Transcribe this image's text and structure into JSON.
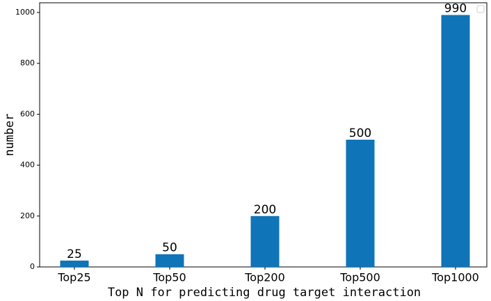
{
  "chart_data": {
    "type": "bar",
    "categories": [
      "Top25",
      "Top50",
      "Top200",
      "Top500",
      "Top1000"
    ],
    "values": [
      25,
      50,
      200,
      500,
      990
    ],
    "color": "#0f74b8",
    "xlabel": "Top N for predicting drug target interaction",
    "ylabel": "number",
    "ylim": [
      0,
      1038
    ],
    "yticks": [
      0,
      200,
      400,
      600,
      800,
      1000
    ],
    "grid": false
  }
}
